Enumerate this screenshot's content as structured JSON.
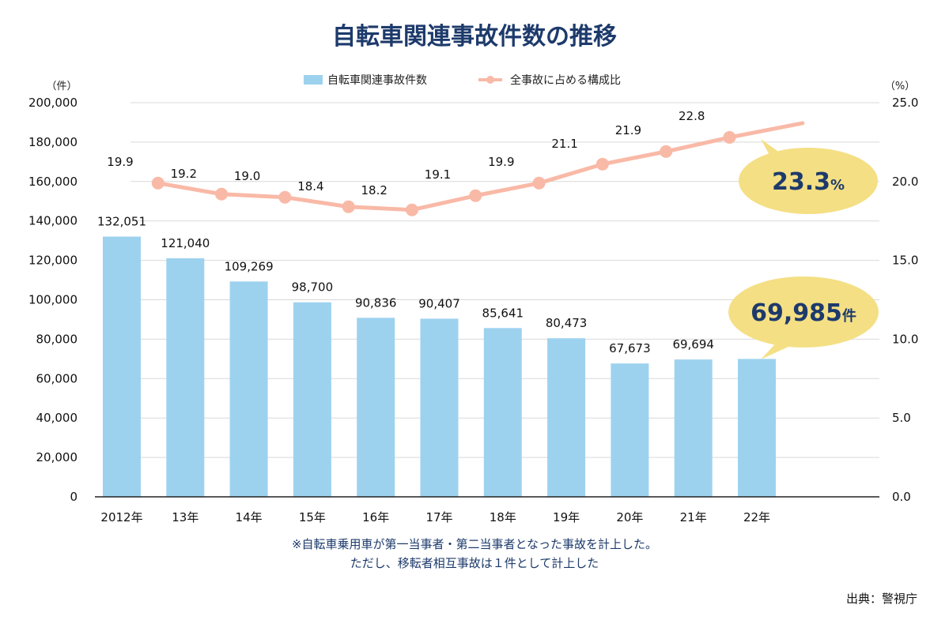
{
  "title": "自転車関連事故件数の推移",
  "colors": {
    "bar": "#9dd2ef",
    "line": "#f9b9a7",
    "bubble": "#f4df84",
    "title": "#1d3a6b",
    "grid": "#d9d9d9"
  },
  "chart_data": {
    "type": "bar",
    "categories": [
      "2012年",
      "13年",
      "14年",
      "15年",
      "16年",
      "17年",
      "18年",
      "19年",
      "20年",
      "21年",
      "22年"
    ],
    "series": [
      {
        "name": "自転車関連事故件数",
        "type": "bar",
        "axis": "left",
        "values": [
          132051,
          121040,
          109269,
          98700,
          90836,
          90407,
          85641,
          80473,
          67673,
          69694,
          69985
        ],
        "labels": [
          "132,051",
          "121,040",
          "109,269",
          "98,700",
          "90,836",
          "90,407",
          "85,641",
          "80,473",
          "67,673",
          "69,694",
          ""
        ]
      },
      {
        "name": "全事故に占める構成比",
        "type": "line",
        "axis": "right",
        "values": [
          19.9,
          19.2,
          19.0,
          18.4,
          18.2,
          19.1,
          19.9,
          21.1,
          21.9,
          22.8,
          23.3
        ],
        "labels": [
          "19.9",
          "19.2",
          "19.0",
          "18.4",
          "18.2",
          "19.1",
          "19.9",
          "21.1",
          "21.9",
          "22.8",
          ""
        ]
      }
    ],
    "y_left": {
      "unit": "（件）",
      "ylim": [
        0,
        200000
      ],
      "ticks": [
        "0",
        "20,000",
        "40,000",
        "60,000",
        "80,000",
        "100,000",
        "120,000",
        "140,000",
        "160,000",
        "180,000",
        "200,000"
      ]
    },
    "y_right": {
      "unit": "（%）",
      "ylim": [
        0,
        25
      ],
      "ticks": [
        "0.0",
        "5.0",
        "10.0",
        "15.0",
        "20.0",
        "25.0"
      ]
    },
    "grid": true,
    "legend": "top-center",
    "callouts": [
      {
        "value": "23.3",
        "unit": "%"
      },
      {
        "value": "69,985",
        "unit": "件"
      }
    ]
  },
  "notes": [
    "※自転車乗用車が第一当事者・第二当事者となった事故を計上した。",
    "ただし、移転者相互事故は１件として計上した"
  ],
  "source": "出典：警視庁"
}
